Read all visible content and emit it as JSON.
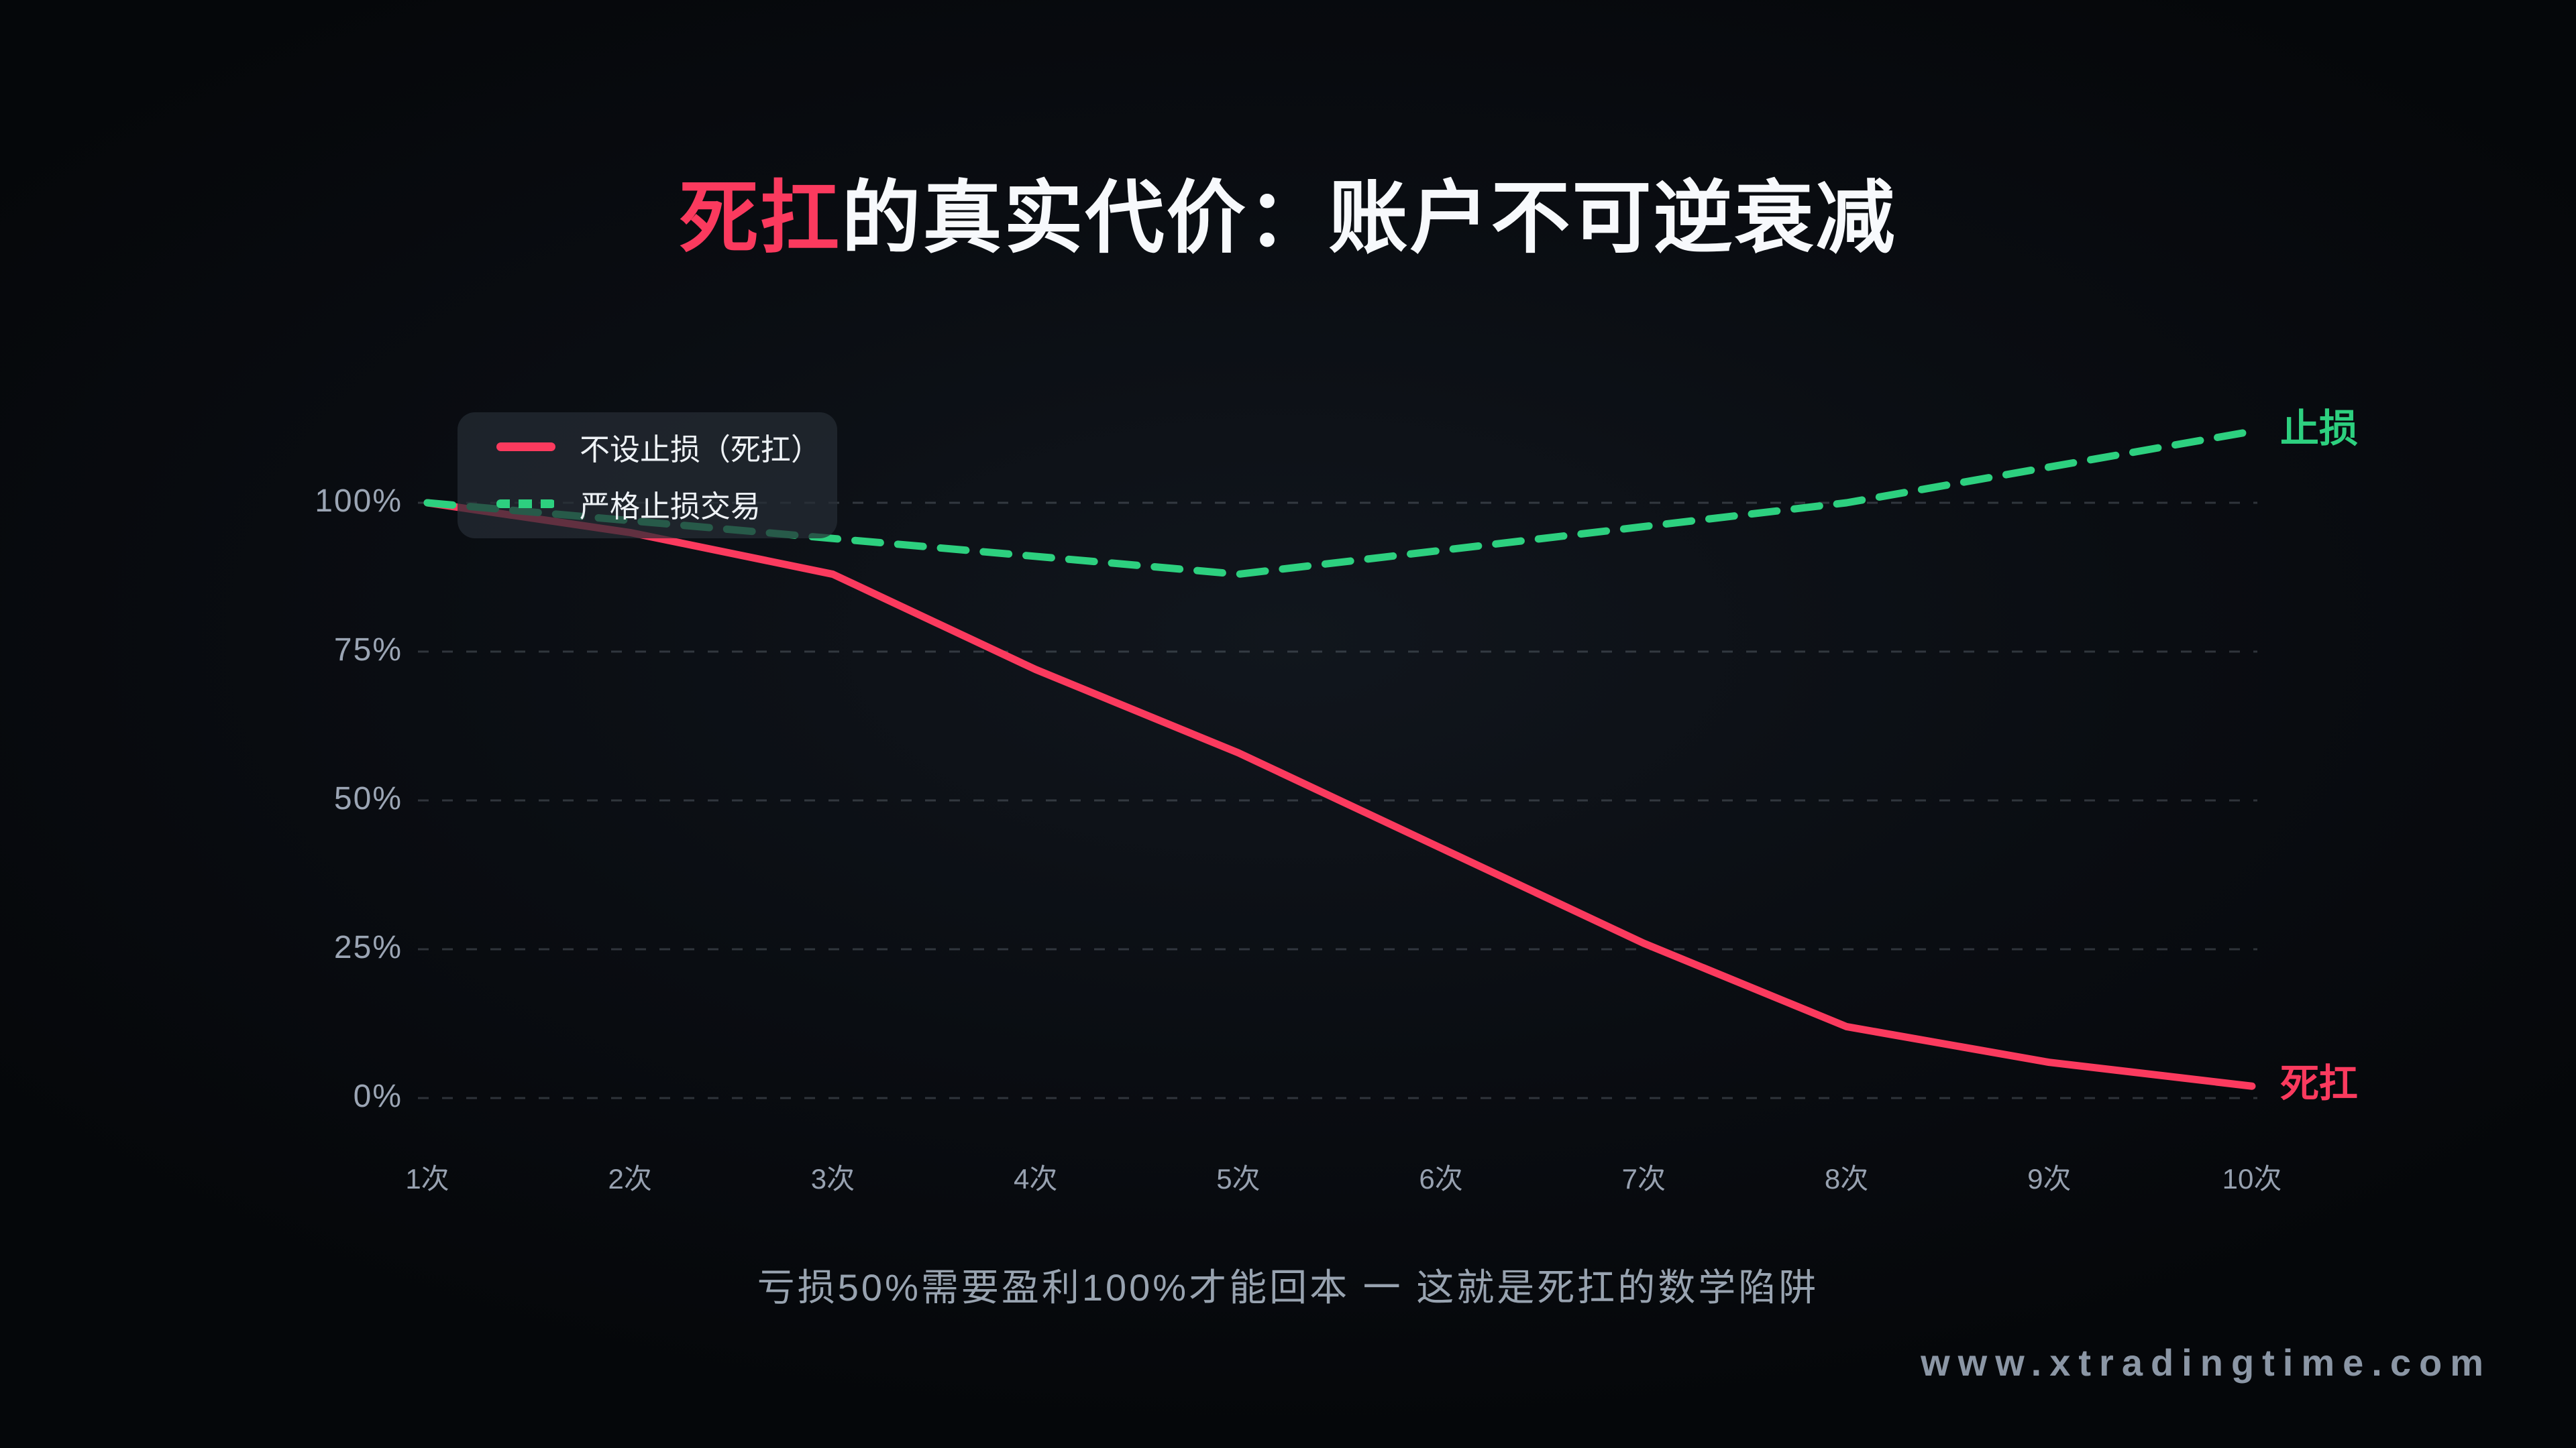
{
  "page": {
    "title": {
      "highlight": "死扛",
      "rest": "的真实代价：账户不可逆衰减"
    },
    "caption": "亏损50%需要盈利100%才能回本 一 这就是死扛的数学陷阱",
    "watermark": "www.xtradingtime.com"
  },
  "legend": {
    "items": [
      {
        "label": "不设止损（死扛）",
        "color": "#fb3a5e",
        "line_style": "solid"
      },
      {
        "label": "严格止损交易",
        "color": "#2dd07f",
        "line_style": "dashed"
      }
    ]
  },
  "chart_data": {
    "type": "line",
    "title": "死扛的真实代价：账户不可逆衰减",
    "subtitle": "亏损50%需要盈利100%才能回本 一 这就是死扛的数学陷阱",
    "categories": [
      "1次",
      "2次",
      "3次",
      "4次",
      "5次",
      "6次",
      "7次",
      "8次",
      "9次",
      "10次"
    ],
    "series": [
      {
        "name": "不设止损（死扛）",
        "color": "#fb3a5e",
        "line_style": "solid",
        "end_label": "死扛",
        "values": [
          100,
          95,
          88,
          72,
          58,
          42,
          26,
          12,
          6,
          2
        ]
      },
      {
        "name": "严格止损交易",
        "color": "#2dd07f",
        "line_style": "dashed",
        "end_label": "止损",
        "values": [
          100,
          97,
          94,
          91,
          88,
          92,
          96,
          100,
          106,
          112
        ]
      }
    ],
    "xlabel": "",
    "ylabel": "",
    "y_ticks": [
      0,
      25,
      50,
      75,
      100
    ],
    "y_tick_labels": [
      "0%",
      "25%",
      "50%",
      "75%",
      "100%"
    ],
    "ylim": [
      0,
      115
    ],
    "grid": "horizontal-dashed",
    "legend_position": "top-left"
  },
  "colors": {
    "background": "#0a0d12",
    "accent_pink": "#fb3a5e",
    "accent_green": "#2dd07f",
    "axis_label": "#9ba5b4",
    "gridline": "rgba(148,158,170,0.28)",
    "title_text": "#f7f9fc",
    "caption_text": "#98a3b0",
    "watermark_text": "#8b96a5"
  }
}
